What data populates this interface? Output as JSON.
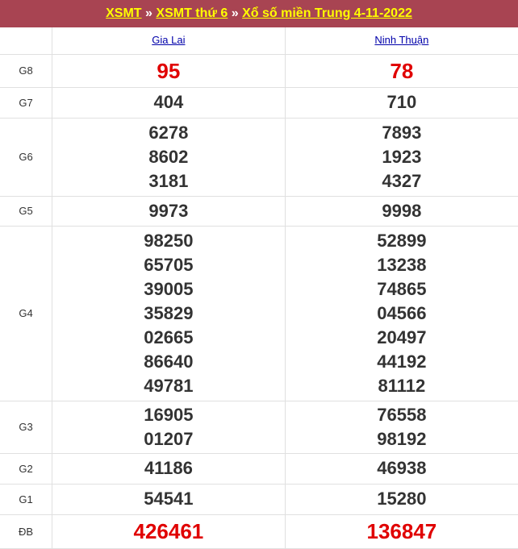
{
  "breadcrumb": [
    "XSMT",
    "XSMT thứ 6",
    "Xổ số miền Trung 4-11-2022"
  ],
  "separator": "»",
  "provinces": [
    "Gia Lai",
    "Ninh Thuận"
  ],
  "colors": {
    "header_bg": "#a84452",
    "link_yellow": "#ffff00",
    "highlight_red": "#e00000"
  },
  "rows": [
    {
      "label": "G8",
      "red": true,
      "h": 41,
      "cols": [
        [
          "95"
        ],
        [
          "78"
        ]
      ]
    },
    {
      "label": "G7",
      "h": 38,
      "cols": [
        [
          "404"
        ],
        [
          "710"
        ]
      ]
    },
    {
      "label": "G6",
      "h": 97,
      "cols": [
        [
          "6278",
          "8602",
          "3181"
        ],
        [
          "7893",
          "1923",
          "4327"
        ]
      ]
    },
    {
      "label": "G5",
      "h": 37,
      "cols": [
        [
          "9973"
        ],
        [
          "9998"
        ]
      ]
    },
    {
      "label": "G4",
      "h": 217,
      "cols": [
        [
          "98250",
          "65705",
          "39005",
          "35829",
          "02665",
          "86640",
          "49781"
        ],
        [
          "52899",
          "13238",
          "74865",
          "04566",
          "20497",
          "44192",
          "81112"
        ]
      ]
    },
    {
      "label": "G3",
      "h": 65,
      "cols": [
        [
          "16905",
          "01207"
        ],
        [
          "76558",
          "98192"
        ]
      ]
    },
    {
      "label": "G2",
      "h": 38,
      "cols": [
        [
          "41186"
        ],
        [
          "46938"
        ]
      ]
    },
    {
      "label": "G1",
      "h": 38,
      "cols": [
        [
          "54541"
        ],
        [
          "15280"
        ]
      ]
    },
    {
      "label": "ĐB",
      "red": true,
      "h": 42,
      "cols": [
        [
          "426461"
        ],
        [
          "136847"
        ]
      ]
    }
  ]
}
